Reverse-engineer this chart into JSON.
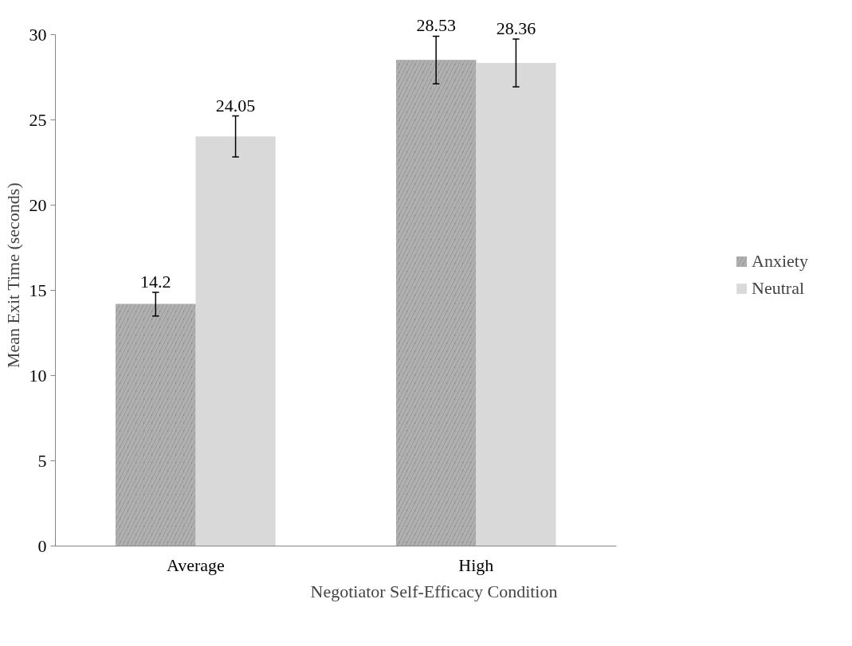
{
  "chart_data": {
    "type": "bar",
    "xlabel": "Negotiator Self-Efficacy Condition",
    "ylabel": "Mean Exit Time (seconds)",
    "categories": [
      "Average",
      "High"
    ],
    "series": [
      {
        "name": "Anxiety",
        "color": "#808080",
        "values": [
          14.2,
          28.53
        ],
        "errors": [
          0.7,
          1.4
        ]
      },
      {
        "name": "Neutral",
        "color": "#d9d9d9",
        "values": [
          24.05,
          28.36
        ],
        "errors": [
          1.2,
          1.4
        ]
      }
    ],
    "ylim": [
      0,
      30
    ],
    "yticks": [
      0,
      5,
      10,
      15,
      20,
      25,
      30
    ],
    "data_labels": true,
    "legend": "right",
    "grid": false
  }
}
